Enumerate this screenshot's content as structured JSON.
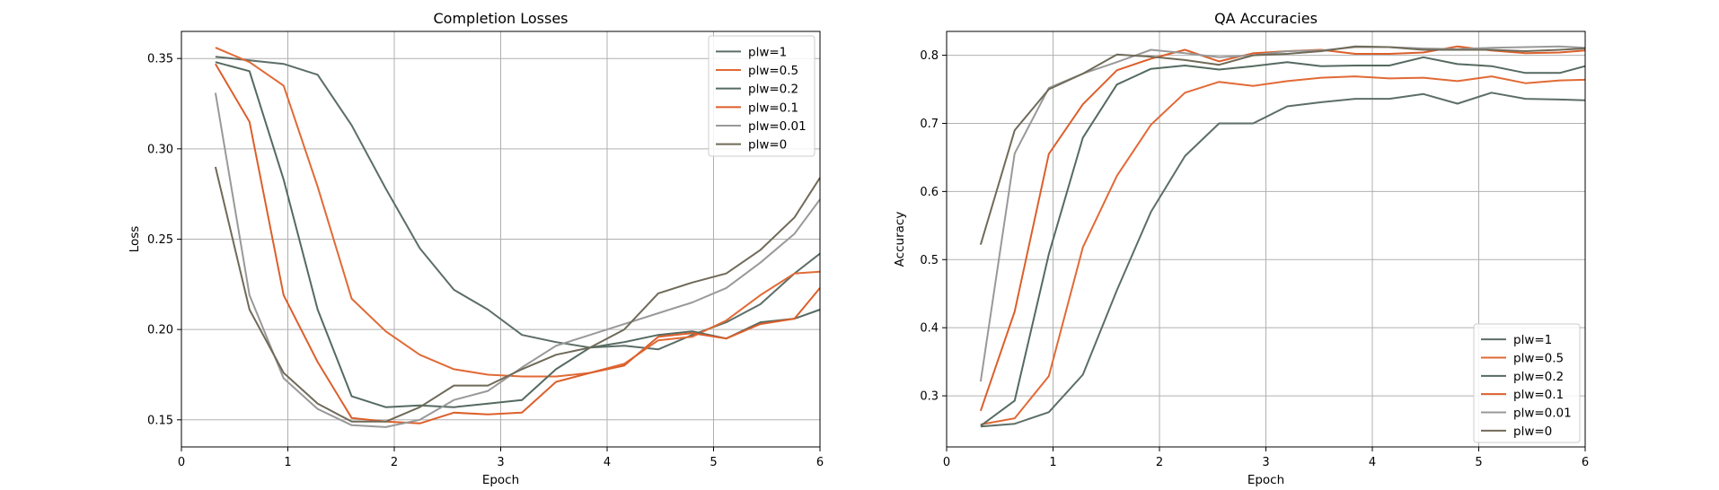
{
  "chart_data": [
    {
      "type": "line",
      "title": "Completion Losses",
      "xlabel": "Epoch",
      "ylabel": "Loss",
      "xlim": [
        0,
        6
      ],
      "ylim": [
        0.135,
        0.365
      ],
      "xticks": [
        0,
        1,
        2,
        3,
        4,
        5,
        6
      ],
      "yticks": [
        0.15,
        0.2,
        0.25,
        0.3,
        0.35
      ],
      "ytick_labels": [
        "0.15",
        "0.20",
        "0.25",
        "0.30",
        "0.35"
      ],
      "grid": true,
      "legend": "top-right",
      "x": [
        0.32,
        0.64,
        0.96,
        1.28,
        1.6,
        1.92,
        2.24,
        2.56,
        2.88,
        3.2,
        3.52,
        3.84,
        4.16,
        4.48,
        4.8,
        5.12,
        5.44,
        5.76,
        6.0
      ],
      "series": [
        {
          "name": "plw=1",
          "color": "#5c6e66",
          "values": [
            0.351,
            0.349,
            0.347,
            0.341,
            0.313,
            0.278,
            0.245,
            0.222,
            0.211,
            0.197,
            0.193,
            0.19,
            0.191,
            0.189,
            0.197,
            0.204,
            0.214,
            0.231,
            0.242
          ]
        },
        {
          "name": "plw=0.5",
          "color": "#e16a36",
          "values": [
            0.356,
            0.348,
            0.335,
            0.279,
            0.217,
            0.199,
            0.186,
            0.178,
            0.175,
            0.174,
            0.174,
            0.176,
            0.181,
            0.194,
            0.196,
            0.205,
            0.219,
            0.231,
            0.232
          ]
        },
        {
          "name": "plw=0.2",
          "color": "#556a60",
          "values": [
            0.348,
            0.343,
            0.283,
            0.211,
            0.163,
            0.157,
            0.158,
            0.157,
            0.159,
            0.161,
            0.178,
            0.19,
            0.193,
            0.197,
            0.199,
            0.195,
            0.204,
            0.206,
            0.211
          ]
        },
        {
          "name": "plw=0.1",
          "color": "#dc5f2b",
          "values": [
            0.347,
            0.315,
            0.219,
            0.182,
            0.151,
            0.149,
            0.148,
            0.154,
            0.153,
            0.154,
            0.171,
            0.176,
            0.18,
            0.196,
            0.198,
            0.195,
            0.203,
            0.206,
            0.223
          ]
        },
        {
          "name": "plw=0.01",
          "color": "#999999",
          "values": [
            0.331,
            0.219,
            0.173,
            0.156,
            0.147,
            0.146,
            0.15,
            0.161,
            0.166,
            0.179,
            0.191,
            0.197,
            0.203,
            0.209,
            0.215,
            0.223,
            0.237,
            0.253,
            0.272
          ]
        },
        {
          "name": "plw=0",
          "color": "#6f6a58",
          "values": [
            0.29,
            0.211,
            0.176,
            0.159,
            0.149,
            0.149,
            0.157,
            0.169,
            0.169,
            0.178,
            0.186,
            0.19,
            0.2,
            0.22,
            0.226,
            0.231,
            0.244,
            0.262,
            0.284
          ]
        }
      ]
    },
    {
      "type": "line",
      "title": "QA Accuracies",
      "xlabel": "Epoch",
      "ylabel": "Accuracy",
      "xlim": [
        0,
        6
      ],
      "ylim": [
        0.225,
        0.835
      ],
      "xticks": [
        0,
        1,
        2,
        3,
        4,
        5,
        6
      ],
      "yticks": [
        0.3,
        0.4,
        0.5,
        0.6,
        0.7,
        0.8
      ],
      "ytick_labels": [
        "0.3",
        "0.4",
        "0.5",
        "0.6",
        "0.7",
        "0.8"
      ],
      "grid": true,
      "legend": "bottom-right",
      "x": [
        0.32,
        0.64,
        0.96,
        1.28,
        1.6,
        1.92,
        2.24,
        2.56,
        2.88,
        3.2,
        3.52,
        3.84,
        4.16,
        4.48,
        4.8,
        5.12,
        5.44,
        5.76,
        6.0
      ],
      "series": [
        {
          "name": "plw=1",
          "color": "#5c6e66",
          "values": [
            0.255,
            0.259,
            0.276,
            0.331,
            0.455,
            0.57,
            0.652,
            0.7,
            0.7,
            0.725,
            0.731,
            0.736,
            0.736,
            0.743,
            0.729,
            0.745,
            0.736,
            0.735,
            0.734
          ]
        },
        {
          "name": "plw=0.5",
          "color": "#e16a36",
          "values": [
            0.258,
            0.267,
            0.329,
            0.518,
            0.623,
            0.698,
            0.745,
            0.761,
            0.755,
            0.762,
            0.767,
            0.769,
            0.766,
            0.767,
            0.762,
            0.769,
            0.759,
            0.763,
            0.764
          ]
        },
        {
          "name": "plw=0.2",
          "color": "#556a60",
          "values": [
            0.256,
            0.293,
            0.508,
            0.679,
            0.757,
            0.78,
            0.785,
            0.779,
            0.784,
            0.79,
            0.784,
            0.785,
            0.785,
            0.797,
            0.787,
            0.784,
            0.774,
            0.774,
            0.784
          ]
        },
        {
          "name": "plw=0.1",
          "color": "#dc5f2b",
          "values": [
            0.278,
            0.424,
            0.655,
            0.728,
            0.778,
            0.795,
            0.808,
            0.791,
            0.803,
            0.806,
            0.808,
            0.802,
            0.802,
            0.804,
            0.813,
            0.807,
            0.803,
            0.804,
            0.807
          ]
        },
        {
          "name": "plw=0.01",
          "color": "#999999",
          "values": [
            0.321,
            0.656,
            0.752,
            0.773,
            0.79,
            0.808,
            0.803,
            0.797,
            0.8,
            0.806,
            0.807,
            0.812,
            0.812,
            0.81,
            0.809,
            0.811,
            0.812,
            0.813,
            0.811
          ]
        },
        {
          "name": "plw=0",
          "color": "#6f6a58",
          "values": [
            0.522,
            0.69,
            0.75,
            0.773,
            0.801,
            0.798,
            0.793,
            0.786,
            0.8,
            0.802,
            0.806,
            0.813,
            0.812,
            0.808,
            0.808,
            0.808,
            0.806,
            0.808,
            0.81
          ]
        }
      ]
    }
  ]
}
